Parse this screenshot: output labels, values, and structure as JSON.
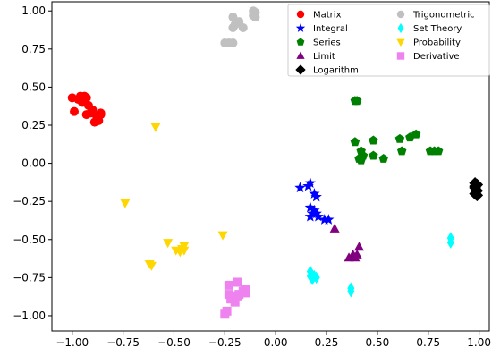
{
  "chart_data": {
    "type": "scatter",
    "xlim": [
      -1.1,
      1.05
    ],
    "ylim": [
      -1.1,
      1.06
    ],
    "xticks": [
      -1.0,
      -0.75,
      -0.5,
      -0.25,
      0.0,
      0.25,
      0.5,
      0.75,
      1.0
    ],
    "xtick_labels": [
      "−1.00",
      "−0.75",
      "−0.50",
      "−0.25",
      "0.00",
      "0.25",
      "0.50",
      "0.75",
      "1.00"
    ],
    "yticks": [
      1.0,
      0.75,
      0.5,
      0.25,
      0.0,
      -0.25,
      -0.5,
      -0.75,
      -1.0
    ],
    "ytick_labels": [
      "1.00",
      "0.75",
      "0.50",
      "0.25",
      "0.00",
      "−0.25",
      "−0.50",
      "−0.75",
      "−1.00"
    ],
    "grid": false,
    "legend_position": "top-right",
    "series": [
      {
        "name": "Matrix",
        "marker": "circle",
        "color": "#ff0000",
        "points": [
          [
            -1.0,
            0.43
          ],
          [
            -0.97,
            0.42
          ],
          [
            -0.95,
            0.4
          ],
          [
            -0.93,
            0.43
          ],
          [
            -0.92,
            0.38
          ],
          [
            -0.9,
            0.35
          ],
          [
            -0.88,
            0.31
          ],
          [
            -0.86,
            0.33
          ],
          [
            -0.87,
            0.28
          ],
          [
            -0.89,
            0.27
          ],
          [
            -0.91,
            0.33
          ],
          [
            -0.93,
            0.32
          ],
          [
            -0.99,
            0.34
          ],
          [
            -0.96,
            0.44
          ],
          [
            -0.94,
            0.44
          ],
          [
            -0.86,
            0.32
          ]
        ]
      },
      {
        "name": "Integral",
        "marker": "star",
        "color": "#0000ff",
        "points": [
          [
            0.12,
            -0.16
          ],
          [
            0.16,
            -0.15
          ],
          [
            0.17,
            -0.13
          ],
          [
            0.19,
            -0.2
          ],
          [
            0.2,
            -0.22
          ],
          [
            0.17,
            -0.29
          ],
          [
            0.18,
            -0.33
          ],
          [
            0.17,
            -0.35
          ],
          [
            0.2,
            -0.33
          ],
          [
            0.19,
            -0.31
          ],
          [
            0.24,
            -0.37
          ],
          [
            0.26,
            -0.37
          ],
          [
            0.21,
            -0.35
          ]
        ]
      },
      {
        "name": "Series",
        "marker": "pentagon",
        "color": "#008000",
        "points": [
          [
            0.39,
            0.41
          ],
          [
            0.4,
            0.41
          ],
          [
            0.39,
            0.14
          ],
          [
            0.42,
            0.08
          ],
          [
            0.43,
            0.05
          ],
          [
            0.41,
            0.03
          ],
          [
            0.42,
            0.02
          ],
          [
            0.48,
            0.05
          ],
          [
            0.48,
            0.15
          ],
          [
            0.53,
            0.03
          ],
          [
            0.61,
            0.16
          ],
          [
            0.62,
            0.08
          ],
          [
            0.66,
            0.17
          ],
          [
            0.69,
            0.19
          ],
          [
            0.76,
            0.08
          ],
          [
            0.78,
            0.08
          ],
          [
            0.8,
            0.08
          ]
        ]
      },
      {
        "name": "Limit",
        "marker": "triangle-up",
        "color": "#800080",
        "points": [
          [
            0.29,
            -0.43
          ],
          [
            0.36,
            -0.62
          ],
          [
            0.38,
            -0.6
          ],
          [
            0.39,
            -0.62
          ],
          [
            0.4,
            -0.6
          ],
          [
            0.41,
            -0.55
          ]
        ]
      },
      {
        "name": "Logarithm",
        "marker": "diamond",
        "color": "#000000",
        "points": [
          [
            0.98,
            -0.13
          ],
          [
            0.98,
            -0.15
          ],
          [
            0.99,
            -0.14
          ],
          [
            0.99,
            -0.18
          ],
          [
            0.98,
            -0.2
          ],
          [
            0.99,
            -0.21
          ],
          [
            0.98,
            -0.16
          ]
        ]
      },
      {
        "name": "Trigonometric",
        "marker": "circle",
        "color": "#c0c0c0",
        "points": [
          [
            -0.25,
            0.79
          ],
          [
            -0.23,
            0.79
          ],
          [
            -0.21,
            0.79
          ],
          [
            -0.21,
            0.89
          ],
          [
            -0.2,
            0.91
          ],
          [
            -0.18,
            0.93
          ],
          [
            -0.21,
            0.96
          ],
          [
            -0.16,
            0.89
          ],
          [
            -0.11,
            0.97
          ],
          [
            -0.1,
            0.96
          ],
          [
            -0.11,
            1.0
          ],
          [
            -0.1,
            0.99
          ]
        ]
      },
      {
        "name": "Set Theory",
        "marker": "thin-diamond",
        "color": "#00ffff",
        "points": [
          [
            0.17,
            -0.71
          ],
          [
            0.17,
            -0.74
          ],
          [
            0.18,
            -0.76
          ],
          [
            0.19,
            -0.74
          ],
          [
            0.2,
            -0.75
          ],
          [
            0.37,
            -0.82
          ],
          [
            0.37,
            -0.84
          ],
          [
            0.86,
            -0.49
          ],
          [
            0.86,
            -0.52
          ]
        ]
      },
      {
        "name": "Probability",
        "marker": "triangle-down",
        "color": "#ffd700",
        "points": [
          [
            -0.59,
            0.24
          ],
          [
            -0.74,
            -0.26
          ],
          [
            -0.61,
            -0.67
          ],
          [
            -0.62,
            -0.66
          ],
          [
            -0.53,
            -0.52
          ],
          [
            -0.49,
            -0.57
          ],
          [
            -0.47,
            -0.58
          ],
          [
            -0.46,
            -0.56
          ],
          [
            -0.45,
            -0.54
          ],
          [
            -0.45,
            -0.57
          ],
          [
            -0.26,
            -0.47
          ]
        ]
      },
      {
        "name": "Derivative",
        "marker": "square",
        "color": "#ee82ee",
        "points": [
          [
            -0.25,
            -0.99
          ],
          [
            -0.24,
            -0.97
          ],
          [
            -0.23,
            -0.8
          ],
          [
            -0.23,
            -0.86
          ],
          [
            -0.22,
            -0.89
          ],
          [
            -0.21,
            -0.88
          ],
          [
            -0.2,
            -0.91
          ],
          [
            -0.19,
            -0.87
          ],
          [
            -0.19,
            -0.78
          ],
          [
            -0.18,
            -0.86
          ],
          [
            -0.16,
            -0.84
          ],
          [
            -0.15,
            -0.85
          ],
          [
            -0.15,
            -0.83
          ]
        ]
      }
    ],
    "legend_columns": [
      [
        "Matrix",
        "Integral",
        "Series",
        "Limit",
        "Logarithm"
      ],
      [
        "Trigonometric",
        "Set Theory",
        "Probability",
        "Derivative"
      ]
    ]
  }
}
